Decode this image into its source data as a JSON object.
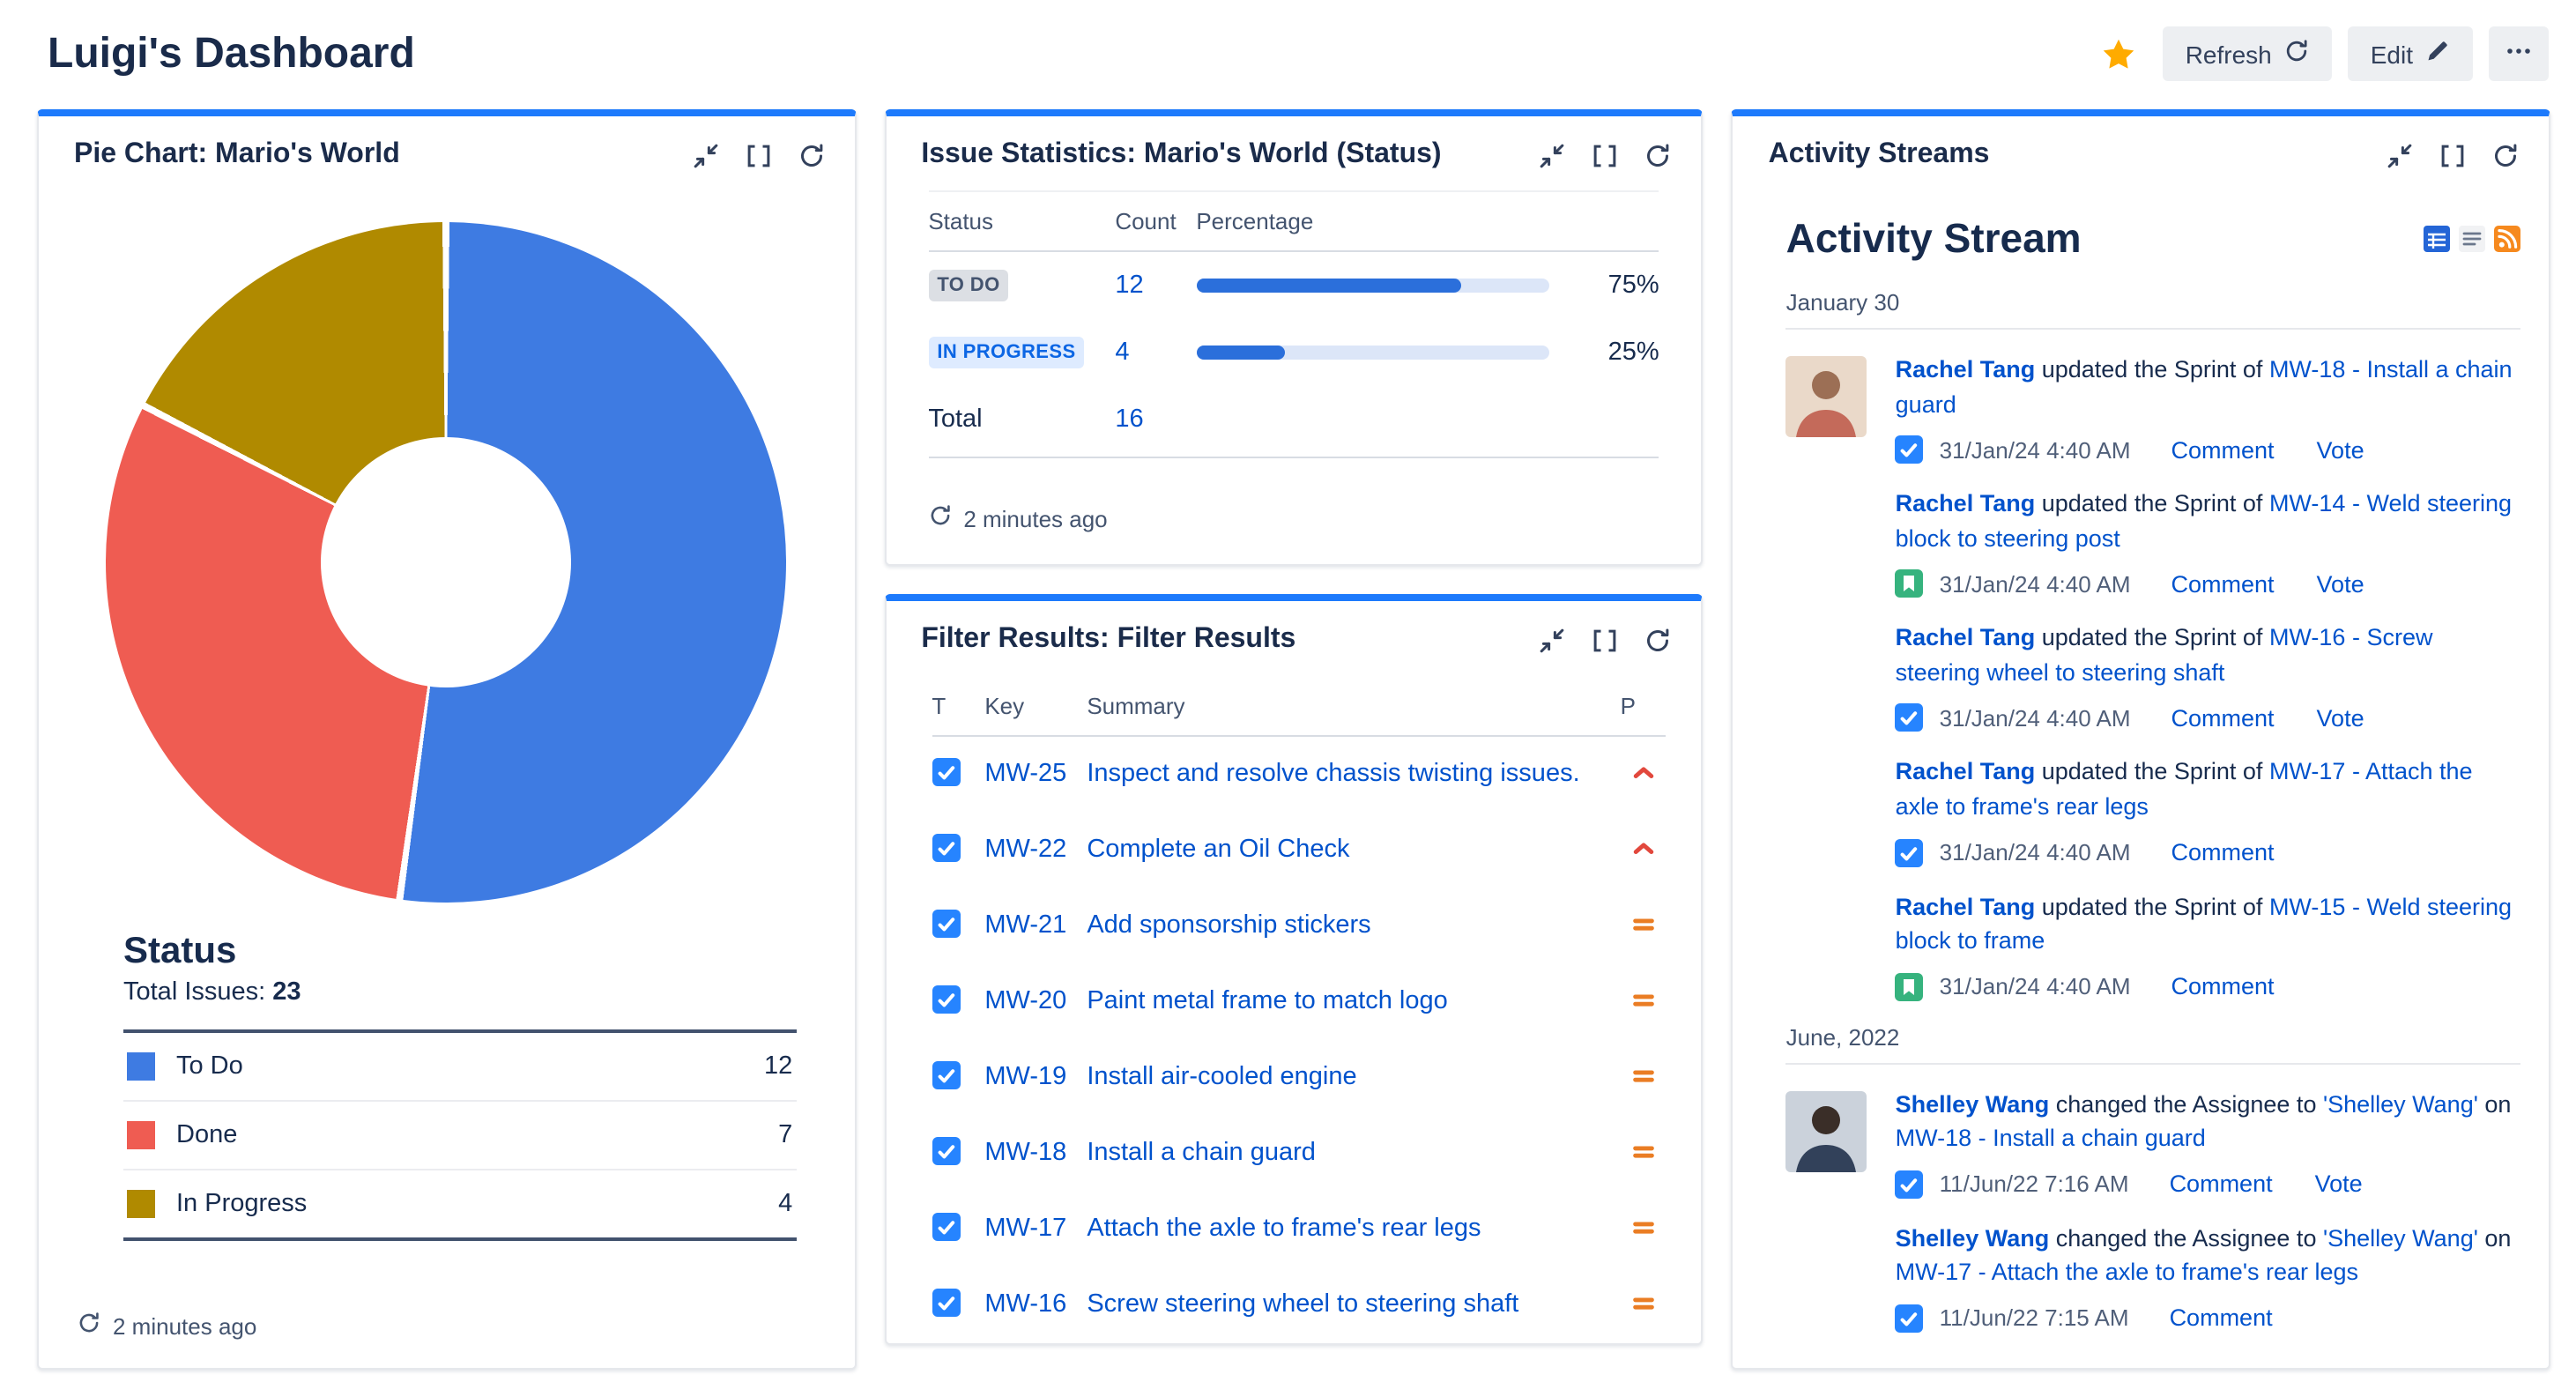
{
  "colors": {
    "accent": "#1D7AFC",
    "link": "#0052CC",
    "text": "#172B4D",
    "muted": "#44546F",
    "bar_fill": "#2B6FDB",
    "bar_track": "#DCE6F8",
    "star": "#FFAB00",
    "task_icon": "#2684FF",
    "story_icon": "#36B37E",
    "priority_high": "#E2483D",
    "priority_medium": "#EA7D24",
    "lozenge_gray_bg": "#DCDFE4",
    "lozenge_gray_text": "#44546F",
    "lozenge_blue_bg": "#DEEBFF",
    "lozenge_blue_text": "#0C66E4"
  },
  "header": {
    "title": "Luigi's Dashboard",
    "refresh_label": "Refresh",
    "edit_label": "Edit"
  },
  "panels": {
    "pie": {
      "title": "Pie Chart: Mario's World",
      "section_title": "Status",
      "total_label": "Total Issues:",
      "total_value": "23",
      "updated": "2 minutes ago"
    },
    "stats": {
      "title": "Issue Statistics: Mario's World (Status)",
      "columns": [
        "Status",
        "Count",
        "Percentage"
      ],
      "rows": [
        {
          "label": "TO DO",
          "count": "12",
          "pct": 75,
          "pct_label": "75%",
          "style": "gray"
        },
        {
          "label": "IN PROGRESS",
          "count": "4",
          "pct": 25,
          "pct_label": "25%",
          "style": "blue"
        }
      ],
      "total_label": "Total",
      "total_value": "16",
      "updated": "2 minutes ago"
    },
    "filter": {
      "title": "Filter Results: Filter Results",
      "columns": {
        "type": "T",
        "key": "Key",
        "summary": "Summary",
        "priority": "P"
      },
      "rows": [
        {
          "type": "task",
          "key": "MW-25",
          "summary": "Inspect and resolve chassis twisting issues.",
          "priority": "high"
        },
        {
          "type": "task",
          "key": "MW-22",
          "summary": "Complete an Oil Check",
          "priority": "high"
        },
        {
          "type": "task",
          "key": "MW-21",
          "summary": "Add sponsorship stickers",
          "priority": "medium"
        },
        {
          "type": "task",
          "key": "MW-20",
          "summary": "Paint metal frame to match logo",
          "priority": "medium"
        },
        {
          "type": "task",
          "key": "MW-19",
          "summary": "Install air-cooled engine",
          "priority": "medium"
        },
        {
          "type": "task",
          "key": "MW-18",
          "summary": "Install a chain guard",
          "priority": "medium"
        },
        {
          "type": "task",
          "key": "MW-17",
          "summary": "Attach the axle to frame's rear legs",
          "priority": "medium"
        },
        {
          "type": "task",
          "key": "MW-16",
          "summary": "Screw steering wheel to steering shaft",
          "priority": "medium"
        }
      ]
    },
    "activity": {
      "title": "Activity Streams",
      "stream_title": "Activity Stream",
      "groups": [
        {
          "date": "January 30",
          "items": [
            {
              "actor": "Rachel Tang",
              "action": "updated the Sprint of",
              "issue": "MW-18 - Install a chain guard",
              "icon": "task",
              "time": "31/Jan/24 4:40 AM",
              "links": [
                "Comment",
                "Vote"
              ],
              "avatar": "rachel-tang"
            },
            {
              "actor": "Rachel Tang",
              "action": "updated the Sprint of",
              "issue": "MW-14 - Weld steering block to steering post",
              "icon": "story",
              "time": "31/Jan/24 4:40 AM",
              "links": [
                "Comment",
                "Vote"
              ],
              "avatar": null
            },
            {
              "actor": "Rachel Tang",
              "action": "updated the Sprint of",
              "issue": "MW-16 - Screw steering wheel to steering shaft",
              "icon": "task",
              "time": "31/Jan/24 4:40 AM",
              "links": [
                "Comment",
                "Vote"
              ],
              "avatar": null
            },
            {
              "actor": "Rachel Tang",
              "action": "updated the Sprint of",
              "issue": "MW-17 - Attach the axle to frame's rear legs",
              "icon": "task",
              "time": "31/Jan/24 4:40 AM",
              "links": [
                "Comment"
              ],
              "avatar": null
            },
            {
              "actor": "Rachel Tang",
              "action": "updated the Sprint of",
              "issue": "MW-15 - Weld steering block to frame",
              "icon": "story",
              "time": "31/Jan/24 4:40 AM",
              "links": [
                "Comment"
              ],
              "avatar": null
            }
          ]
        },
        {
          "date": "June, 2022",
          "items": [
            {
              "actor": "Shelley Wang",
              "action": "changed the Assignee to",
              "assignee": "'Shelley Wang'",
              "connector": "on",
              "issue": "MW-18 - Install a chain guard",
              "icon": "task",
              "time": "11/Jun/22 7:16 AM",
              "links": [
                "Comment",
                "Vote"
              ],
              "avatar": "shelley-wang"
            },
            {
              "actor": "Shelley Wang",
              "action": "changed the Assignee to",
              "assignee": "'Shelley Wang'",
              "connector": "on",
              "issue": "MW-17 - Attach the axle to frame's rear legs",
              "icon": "task",
              "time": "11/Jun/22 7:15 AM",
              "links": [
                "Comment"
              ],
              "avatar": null
            }
          ]
        }
      ]
    }
  },
  "chart_data": {
    "type": "pie",
    "title": "Pie Chart: Mario's World",
    "series_label": "Status",
    "total": 23,
    "categories": [
      "To Do",
      "Done",
      "In Progress"
    ],
    "values": [
      12,
      7,
      4
    ],
    "colors": [
      "#3E7BE2",
      "#EF5C52",
      "#B08A00"
    ],
    "donut": true,
    "legend_position": "bottom"
  }
}
